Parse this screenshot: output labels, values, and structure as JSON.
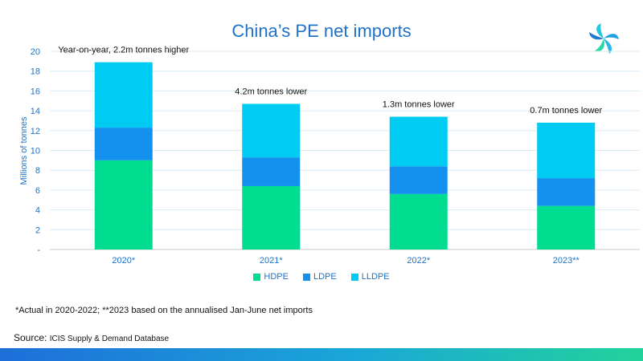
{
  "title": "China’s PE net imports",
  "colors": {
    "HDPE": "#00dd91",
    "LDPE": "#1490ee",
    "LLDPE": "#00ccf3",
    "title": "#1f72c6",
    "axis_text": "#1f72c6"
  },
  "chart_data": {
    "type": "bar",
    "stacked": true,
    "categories": [
      "2020*",
      "2021*",
      "2022*",
      "2023**"
    ],
    "series": [
      {
        "name": "HDPE",
        "values": [
          9.0,
          6.4,
          5.6,
          4.4
        ]
      },
      {
        "name": "LDPE",
        "values": [
          3.3,
          2.9,
          2.8,
          2.8
        ]
      },
      {
        "name": "LLDPE",
        "values": [
          6.6,
          5.4,
          5.0,
          5.6
        ]
      }
    ],
    "annotations": [
      "Year-on-year, 2.2m tonnes higher",
      "4.2m tonnes lower",
      "1.3m tonnes lower",
      "0.7m tonnes lower"
    ],
    "ylabel": "Millions of tonnes",
    "xlabel": "",
    "ylim": [
      0,
      20
    ],
    "yticks": [
      "-",
      "2",
      "4",
      "6",
      "8",
      "10",
      "12",
      "14",
      "16",
      "18",
      "20"
    ],
    "grid": true,
    "legend_position": "bottom"
  },
  "footnote": "*Actual in 2020-2022; **2023 based on the annualised Jan-June net imports",
  "source": {
    "label": "Source:",
    "text": "ICIS Supply & Demand Database"
  }
}
